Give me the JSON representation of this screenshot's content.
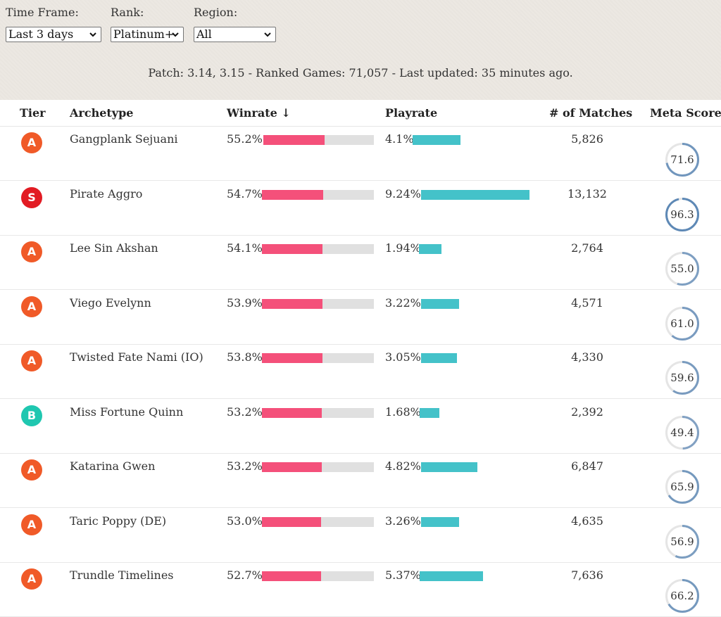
{
  "filters": [
    {
      "label": "Time Frame:",
      "value": "Last 3 days"
    },
    {
      "label": "Rank:",
      "value": "Platinum+"
    },
    {
      "label": "Region:",
      "value": "All"
    }
  ],
  "patch_info": "Patch: 3.14, 3.15 - Ranked Games: 71,057 - Last updated: 35 minutes ago.",
  "columns": {
    "tier": "Tier",
    "archetype": "Archetype",
    "winrate": "Winrate ↓",
    "playrate": "Playrate",
    "matches": "# of Matches",
    "meta_score": "Meta Score"
  },
  "colors": {
    "tier_A": "#f05a28",
    "tier_S": "#e21b23",
    "tier_B": "#1fc7b0",
    "winrate_bar": "#f4507a",
    "playrate_bar": "#44c2c9",
    "meta_ring": "#5b87b5",
    "meta_ring_bg": "#e5e5e5"
  },
  "rows": [
    {
      "tier": "A",
      "archetype": "Gangplank Sejuani",
      "winrate": "55.2%",
      "winrate_fill": 0.552,
      "playrate": "4.1%",
      "playrate_pct": 4.1,
      "matches": "5,826",
      "meta_score": "71.6"
    },
    {
      "tier": "S",
      "archetype": "Pirate Aggro",
      "winrate": "54.7%",
      "winrate_fill": 0.547,
      "playrate": "9.24%",
      "playrate_pct": 9.24,
      "matches": "13,132",
      "meta_score": "96.3"
    },
    {
      "tier": "A",
      "archetype": "Lee Sin Akshan",
      "winrate": "54.1%",
      "winrate_fill": 0.541,
      "playrate": "1.94%",
      "playrate_pct": 1.94,
      "matches": "2,764",
      "meta_score": "55.0"
    },
    {
      "tier": "A",
      "archetype": "Viego Evelynn",
      "winrate": "53.9%",
      "winrate_fill": 0.539,
      "playrate": "3.22%",
      "playrate_pct": 3.22,
      "matches": "4,571",
      "meta_score": "61.0"
    },
    {
      "tier": "A",
      "archetype": "Twisted Fate Nami (IO)",
      "winrate": "53.8%",
      "winrate_fill": 0.538,
      "playrate": "3.05%",
      "playrate_pct": 3.05,
      "matches": "4,330",
      "meta_score": "59.6"
    },
    {
      "tier": "B",
      "archetype": "Miss Fortune Quinn",
      "winrate": "53.2%",
      "winrate_fill": 0.532,
      "playrate": "1.68%",
      "playrate_pct": 1.68,
      "matches": "2,392",
      "meta_score": "49.4"
    },
    {
      "tier": "A",
      "archetype": "Katarina Gwen",
      "winrate": "53.2%",
      "winrate_fill": 0.532,
      "playrate": "4.82%",
      "playrate_pct": 4.82,
      "matches": "6,847",
      "meta_score": "65.9"
    },
    {
      "tier": "A",
      "archetype": "Taric Poppy (DE)",
      "winrate": "53.0%",
      "winrate_fill": 0.53,
      "playrate": "3.26%",
      "playrate_pct": 3.26,
      "matches": "4,635",
      "meta_score": "56.9"
    },
    {
      "tier": "A",
      "archetype": "Trundle Timelines",
      "winrate": "52.7%",
      "winrate_fill": 0.527,
      "playrate": "5.37%",
      "playrate_pct": 5.37,
      "matches": "7,636",
      "meta_score": "66.2"
    }
  ]
}
